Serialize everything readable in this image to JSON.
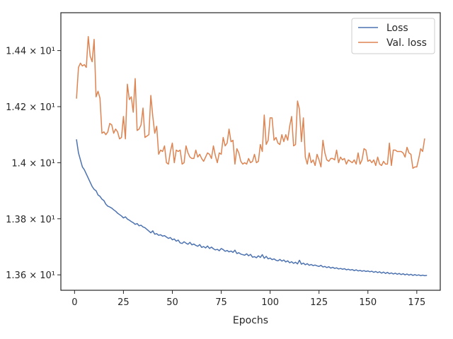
{
  "chart_data": {
    "type": "line",
    "xlabel": "Epochs",
    "ylabel": "",
    "xlim": [
      -7,
      187
    ],
    "ylim": [
      13.545,
      14.535
    ],
    "x_ticks": [
      0,
      25,
      50,
      75,
      100,
      125,
      150,
      175
    ],
    "y_ticks": [
      {
        "value": 13.6,
        "label": "1.36 × 10¹"
      },
      {
        "value": 13.8,
        "label": "1.38 × 10¹"
      },
      {
        "value": 14.0,
        "label": "1.4 × 10¹"
      },
      {
        "value": 14.2,
        "label": "1.42 × 10¹"
      },
      {
        "value": 14.4,
        "label": "1.44 × 10¹"
      }
    ],
    "legend_position": "top-right",
    "grid": false,
    "x_start": 1,
    "x_step": 1,
    "series": [
      {
        "name": "Loss",
        "color": "#4c72b0",
        "values": [
          14.082,
          14.035,
          14.01,
          13.985,
          13.975,
          13.96,
          13.945,
          13.93,
          13.915,
          13.905,
          13.9,
          13.885,
          13.88,
          13.87,
          13.865,
          13.852,
          13.845,
          13.842,
          13.838,
          13.832,
          13.827,
          13.82,
          13.815,
          13.81,
          13.803,
          13.807,
          13.799,
          13.795,
          13.79,
          13.786,
          13.78,
          13.783,
          13.775,
          13.777,
          13.771,
          13.768,
          13.762,
          13.756,
          13.75,
          13.757,
          13.745,
          13.747,
          13.741,
          13.743,
          13.738,
          13.74,
          13.735,
          13.73,
          13.733,
          13.725,
          13.728,
          13.72,
          13.724,
          13.714,
          13.712,
          13.718,
          13.713,
          13.709,
          13.716,
          13.707,
          13.71,
          13.705,
          13.702,
          13.708,
          13.698,
          13.701,
          13.696,
          13.703,
          13.694,
          13.699,
          13.693,
          13.689,
          13.691,
          13.686,
          13.694,
          13.69,
          13.684,
          13.687,
          13.682,
          13.685,
          13.68,
          13.688,
          13.676,
          13.679,
          13.674,
          13.672,
          13.67,
          13.675,
          13.668,
          13.673,
          13.663,
          13.665,
          13.661,
          13.668,
          13.662,
          13.672,
          13.659,
          13.666,
          13.657,
          13.66,
          13.654,
          13.657,
          13.652,
          13.65,
          13.655,
          13.649,
          13.653,
          13.646,
          13.65,
          13.643,
          13.647,
          13.641,
          13.645,
          13.639,
          13.652,
          13.638,
          13.642,
          13.636,
          13.64,
          13.634,
          13.637,
          13.633,
          13.635,
          13.632,
          13.63,
          13.634,
          13.628,
          13.63,
          13.626,
          13.629,
          13.624,
          13.627,
          13.623,
          13.625,
          13.621,
          13.623,
          13.62,
          13.622,
          13.618,
          13.62,
          13.617,
          13.619,
          13.615,
          13.618,
          13.614,
          13.616,
          13.613,
          13.615,
          13.612,
          13.614,
          13.611,
          13.613,
          13.609,
          13.612,
          13.608,
          13.611,
          13.606,
          13.61,
          13.605,
          13.609,
          13.604,
          13.607,
          13.603,
          13.606,
          13.602,
          13.605,
          13.601,
          13.604,
          13.6,
          13.603,
          13.599,
          13.602,
          13.598,
          13.601,
          13.598,
          13.6,
          13.597,
          13.599,
          13.597,
          13.598
        ]
      },
      {
        "name": "Val. loss",
        "color": "#dd8452",
        "values": [
          14.23,
          14.34,
          14.355,
          14.345,
          14.35,
          14.34,
          14.45,
          14.38,
          14.36,
          14.44,
          14.235,
          14.255,
          14.23,
          14.105,
          14.11,
          14.1,
          14.11,
          14.14,
          14.135,
          14.105,
          14.12,
          14.11,
          14.085,
          14.09,
          14.165,
          14.085,
          14.28,
          14.225,
          14.235,
          14.18,
          14.3,
          14.115,
          14.12,
          14.135,
          14.195,
          14.09,
          14.095,
          14.1,
          14.24,
          14.165,
          14.105,
          14.13,
          14.03,
          14.045,
          14.04,
          14.06,
          14.0,
          13.995,
          14.04,
          14.07,
          14.0,
          14.045,
          14.04,
          14.045,
          13.995,
          14.0,
          14.06,
          14.035,
          14.02,
          14.015,
          14.015,
          14.045,
          14.02,
          14.03,
          14.015,
          14.005,
          14.02,
          14.035,
          14.03,
          14.015,
          14.06,
          14.025,
          14.0,
          14.035,
          14.03,
          14.09,
          14.06,
          14.07,
          14.12,
          14.075,
          14.08,
          13.995,
          14.05,
          14.035,
          14.005,
          13.995,
          14.0,
          13.995,
          14.015,
          14.0,
          14.005,
          14.03,
          14.0,
          14.005,
          14.065,
          14.04,
          14.17,
          14.065,
          14.08,
          14.16,
          14.16,
          14.08,
          14.09,
          14.07,
          14.065,
          14.1,
          14.075,
          14.1,
          14.08,
          14.13,
          14.165,
          14.06,
          14.065,
          14.22,
          14.19,
          14.075,
          14.16,
          14.02,
          13.995,
          14.035,
          14.0,
          14.01,
          13.99,
          14.03,
          14.01,
          13.985,
          14.08,
          14.035,
          14.01,
          14.005,
          14.015,
          14.015,
          14.01,
          14.045,
          14.0,
          14.02,
          14.01,
          14.015,
          13.995,
          14.01,
          14.005,
          14.0,
          14.01,
          13.995,
          14.035,
          13.995,
          14.01,
          14.05,
          14.045,
          14.005,
          14.01,
          14.0,
          14.01,
          13.99,
          14.02,
          13.995,
          13.99,
          14.005,
          13.995,
          13.995,
          14.07,
          13.99,
          14.045,
          14.045,
          14.04,
          14.04,
          14.04,
          14.035,
          14.02,
          14.055,
          14.035,
          14.03,
          13.98,
          13.985,
          13.985,
          14.015,
          14.05,
          14.04,
          14.085
        ]
      }
    ]
  }
}
